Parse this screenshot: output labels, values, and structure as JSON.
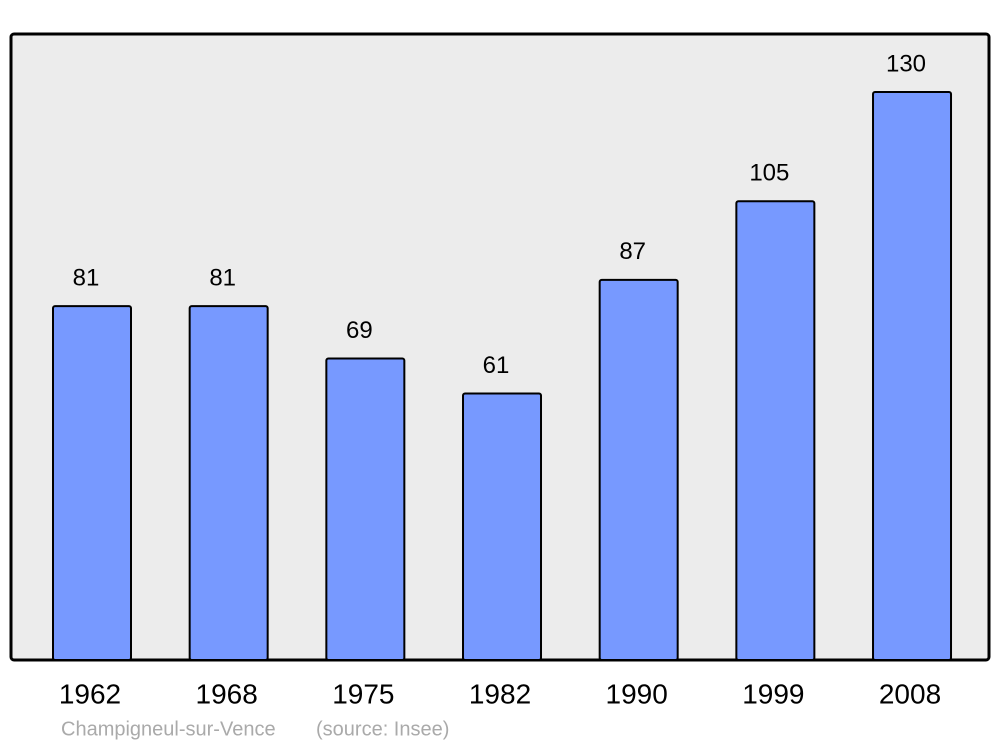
{
  "chart_data": {
    "type": "bar",
    "categories": [
      "1962",
      "1968",
      "1975",
      "1982",
      "1990",
      "1999",
      "2008"
    ],
    "values": [
      81,
      81,
      69,
      61,
      87,
      105,
      130
    ],
    "color": "#7799ff",
    "caption": "Champigneul-sur-Vence",
    "source": "(source: Insee)"
  }
}
